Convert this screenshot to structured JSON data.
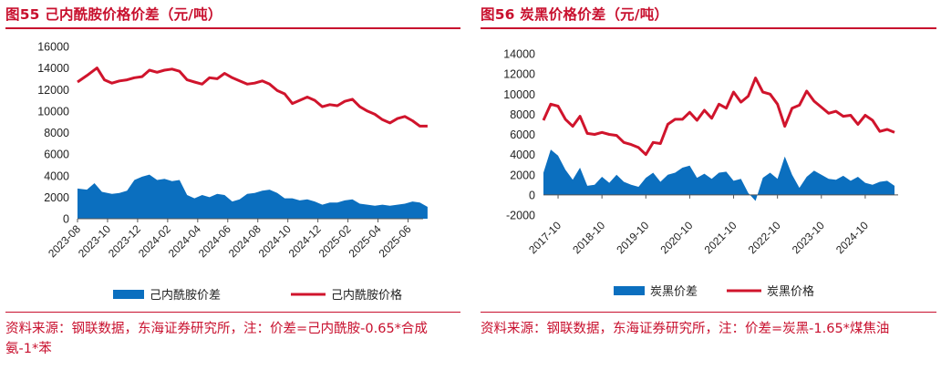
{
  "charts": [
    {
      "figure_title": "图55  己内酰胺价格价差（元/吨）",
      "source": "资料来源：钢联数据，东海证券研究所，注：价差=己内酰胺-0.65*合成氨-1*苯",
      "colors": {
        "line": "#d0142c",
        "area": "#0b6fbf"
      },
      "chart_data": {
        "type": "line+area",
        "ylim": [
          0,
          16000
        ],
        "y_ticks": [
          0,
          2000,
          4000,
          6000,
          8000,
          10000,
          12000,
          14000,
          16000
        ],
        "x_range": [
          "2023-08",
          "2025-07"
        ],
        "x_tick_labels": [
          "2023-08",
          "2023-10",
          "2023-12",
          "2024-02",
          "2024-04",
          "2024-06",
          "2024-08",
          "2024-10",
          "2024-12",
          "2025-02",
          "2025-04",
          "2025-06"
        ],
        "legend": [
          "己内酰胺价差",
          "己内酰胺价格"
        ],
        "series": [
          {
            "name": "己内酰胺价格",
            "kind": "line",
            "x": [
              "2023-08-01",
              "2023-08-20",
              "2023-09-10",
              "2023-09-25",
              "2023-10-10",
              "2023-10-25",
              "2023-11-10",
              "2023-11-25",
              "2023-12-10",
              "2023-12-25",
              "2024-01-10",
              "2024-01-25",
              "2024-02-10",
              "2024-02-25",
              "2024-03-10",
              "2024-03-25",
              "2024-04-10",
              "2024-04-25",
              "2024-05-10",
              "2024-05-25",
              "2024-06-10",
              "2024-06-25",
              "2024-07-10",
              "2024-07-25",
              "2024-08-10",
              "2024-08-25",
              "2024-09-10",
              "2024-09-25",
              "2024-10-10",
              "2024-10-25",
              "2024-11-10",
              "2024-11-25",
              "2024-12-10",
              "2024-12-25",
              "2025-01-10",
              "2025-01-25",
              "2025-02-10",
              "2025-02-25",
              "2025-03-10",
              "2025-03-25",
              "2025-04-10",
              "2025-04-25",
              "2025-05-10",
              "2025-05-25",
              "2025-06-10",
              "2025-06-25",
              "2025-07-10"
            ],
            "y": [
              12700,
              13300,
              14000,
              12900,
              12600,
              12800,
              12900,
              13100,
              13200,
              13800,
              13600,
              13800,
              13900,
              13700,
              12900,
              12700,
              12500,
              13100,
              13000,
              13500,
              13100,
              12800,
              12500,
              12600,
              12800,
              12500,
              11900,
              11600,
              10700,
              11000,
              11300,
              11000,
              10400,
              10600,
              10500,
              10900,
              11100,
              10400,
              10000,
              9700,
              9200,
              8900,
              9300,
              9500,
              9100,
              8600,
              8600
            ]
          },
          {
            "name": "己内酰胺价差",
            "kind": "area",
            "x": [
              "2023-08-01",
              "2023-08-20",
              "2023-09-05",
              "2023-09-20",
              "2023-10-10",
              "2023-10-25",
              "2023-11-10",
              "2023-11-25",
              "2023-12-10",
              "2023-12-25",
              "2024-01-10",
              "2024-01-25",
              "2024-02-10",
              "2024-02-25",
              "2024-03-10",
              "2024-03-25",
              "2024-04-10",
              "2024-04-25",
              "2024-05-10",
              "2024-05-25",
              "2024-06-10",
              "2024-06-25",
              "2024-07-10",
              "2024-07-25",
              "2024-08-10",
              "2024-08-25",
              "2024-09-10",
              "2024-09-25",
              "2024-10-10",
              "2024-10-25",
              "2024-11-10",
              "2024-11-25",
              "2024-12-10",
              "2024-12-25",
              "2025-01-10",
              "2025-01-25",
              "2025-02-10",
              "2025-02-25",
              "2025-03-10",
              "2025-03-25",
              "2025-04-10",
              "2025-04-25",
              "2025-05-10",
              "2025-05-25",
              "2025-06-10",
              "2025-06-25",
              "2025-07-10"
            ],
            "y": [
              2800,
              2700,
              3300,
              2500,
              2300,
              2400,
              2600,
              3600,
              3900,
              4100,
              3600,
              3700,
              3500,
              3600,
              2200,
              1900,
              2200,
              2000,
              2300,
              2200,
              1600,
              1800,
              2300,
              2400,
              2600,
              2700,
              2400,
              1900,
              1900,
              1700,
              1800,
              1600,
              1300,
              1500,
              1500,
              1700,
              1800,
              1400,
              1300,
              1200,
              1300,
              1200,
              1300,
              1400,
              1600,
              1500,
              1100
            ]
          }
        ]
      }
    },
    {
      "figure_title": "图56  炭黑价格价差（元/吨）",
      "source": "资料来源：钢联数据，东海证券研究所，注：价差=炭黑-1.65*煤焦油",
      "colors": {
        "line": "#d0142c",
        "area": "#0b6fbf"
      },
      "chart_data": {
        "type": "line+area",
        "ylim": [
          -2000,
          14000
        ],
        "y_ticks": [
          -2000,
          0,
          2000,
          4000,
          6000,
          8000,
          10000,
          12000,
          14000
        ],
        "x_range": [
          "2017-06",
          "2025-07"
        ],
        "x_tick_labels": [
          "2017-10",
          "2018-10",
          "2019-10",
          "2020-10",
          "2021-10",
          "2022-10",
          "2023-10",
          "2024-10"
        ],
        "legend": [
          "炭黑价差",
          "炭黑价格"
        ],
        "series": [
          {
            "name": "炭黑价格",
            "kind": "line",
            "x": [
              "2017-06-01",
              "2017-08-01",
              "2017-10-01",
              "2017-12-01",
              "2018-02-01",
              "2018-04-01",
              "2018-06-01",
              "2018-08-01",
              "2018-10-01",
              "2018-12-01",
              "2019-02-01",
              "2019-04-01",
              "2019-06-01",
              "2019-08-01",
              "2019-10-01",
              "2019-12-01",
              "2020-02-01",
              "2020-04-01",
              "2020-06-01",
              "2020-08-01",
              "2020-10-01",
              "2020-12-01",
              "2021-02-01",
              "2021-04-01",
              "2021-06-01",
              "2021-08-01",
              "2021-10-01",
              "2021-12-01",
              "2022-02-01",
              "2022-04-01",
              "2022-06-01",
              "2022-08-01",
              "2022-10-01",
              "2022-12-01",
              "2023-02-01",
              "2023-04-01",
              "2023-06-01",
              "2023-08-01",
              "2023-10-01",
              "2023-12-01",
              "2024-02-01",
              "2024-04-01",
              "2024-06-01",
              "2024-08-01",
              "2024-10-01",
              "2024-12-01",
              "2025-02-01",
              "2025-04-01",
              "2025-06-01"
            ],
            "y": [
              7400,
              9000,
              8800,
              7500,
              6800,
              7800,
              6100,
              6000,
              6200,
              6000,
              5900,
              5200,
              5000,
              4700,
              4000,
              5200,
              5100,
              7000,
              7500,
              7500,
              8200,
              7400,
              8400,
              7600,
              9000,
              8600,
              10200,
              9200,
              9800,
              11600,
              10200,
              10000,
              9000,
              6800,
              8600,
              8900,
              10300,
              9300,
              8700,
              8100,
              8300,
              7800,
              7900,
              7000,
              7900,
              7400,
              6300,
              6500,
              6200
            ]
          },
          {
            "name": "炭黑价差",
            "kind": "area",
            "x": [
              "2017-06-01",
              "2017-08-01",
              "2017-10-01",
              "2017-12-01",
              "2018-02-01",
              "2018-04-01",
              "2018-06-01",
              "2018-08-01",
              "2018-10-01",
              "2018-12-01",
              "2019-02-01",
              "2019-04-01",
              "2019-06-01",
              "2019-08-01",
              "2019-10-01",
              "2019-12-01",
              "2020-02-01",
              "2020-04-01",
              "2020-06-01",
              "2020-08-01",
              "2020-10-01",
              "2020-12-01",
              "2021-02-01",
              "2021-04-01",
              "2021-06-01",
              "2021-08-01",
              "2021-10-01",
              "2021-12-01",
              "2022-02-01",
              "2022-04-01",
              "2022-06-01",
              "2022-08-01",
              "2022-10-01",
              "2022-12-01",
              "2023-02-01",
              "2023-04-01",
              "2023-06-01",
              "2023-08-01",
              "2023-10-01",
              "2023-12-01",
              "2024-02-01",
              "2024-04-01",
              "2024-06-01",
              "2024-08-01",
              "2024-10-01",
              "2024-12-01",
              "2025-02-01",
              "2025-04-01",
              "2025-06-01"
            ],
            "y": [
              2200,
              4500,
              3900,
              2500,
              1500,
              2700,
              900,
              1000,
              1800,
              1200,
              2000,
              1300,
              1000,
              800,
              1700,
              2200,
              1300,
              2000,
              2200,
              2700,
              2900,
              1700,
              2100,
              1600,
              2200,
              2300,
              1400,
              1600,
              200,
              -600,
              1700,
              2200,
              1600,
              3800,
              2000,
              700,
              1800,
              2400,
              2000,
              1600,
              1500,
              1900,
              1400,
              1800,
              1200,
              1000,
              1300,
              1400,
              900
            ]
          }
        ]
      }
    }
  ]
}
